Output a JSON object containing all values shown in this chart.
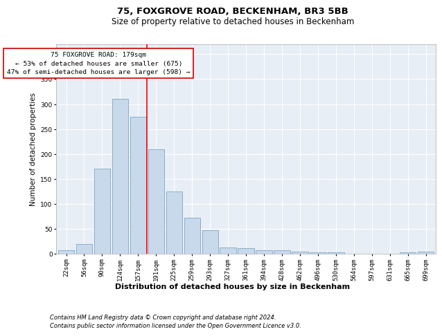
{
  "title": "75, FOXGROVE ROAD, BECKENHAM, BR3 5BB",
  "subtitle": "Size of property relative to detached houses in Beckenham",
  "xlabel": "Distribution of detached houses by size in Beckenham",
  "ylabel": "Number of detached properties",
  "footer1": "Contains HM Land Registry data © Crown copyright and database right 2024.",
  "footer2": "Contains public sector information licensed under the Open Government Licence v3.0.",
  "annotation_title": "75 FOXGROVE ROAD: 179sqm",
  "annotation_line2": "← 53% of detached houses are smaller (675)",
  "annotation_line3": "47% of semi-detached houses are larger (598) →",
  "bar_categories": [
    "22sqm",
    "56sqm",
    "90sqm",
    "124sqm",
    "157sqm",
    "191sqm",
    "225sqm",
    "259sqm",
    "293sqm",
    "327sqm",
    "361sqm",
    "394sqm",
    "428sqm",
    "462sqm",
    "496sqm",
    "530sqm",
    "564sqm",
    "597sqm",
    "631sqm",
    "665sqm",
    "699sqm"
  ],
  "bar_values": [
    7,
    20,
    170,
    310,
    275,
    210,
    125,
    73,
    48,
    13,
    12,
    7,
    7,
    5,
    3,
    3,
    1,
    0,
    0,
    3,
    4
  ],
  "bar_color": "#c9d9ec",
  "bar_edge_color": "#6699bb",
  "red_line_bin_index": 4,
  "ylim": [
    0,
    420
  ],
  "yticks": [
    0,
    50,
    100,
    150,
    200,
    250,
    300,
    350,
    400
  ],
  "axes_bg": "#e8eef5",
  "grid_color": "#ffffff",
  "annotation_box_edge": "#cc0000",
  "title_fontsize": 9.5,
  "subtitle_fontsize": 8.5,
  "ylabel_fontsize": 7.5,
  "xlabel_fontsize": 8,
  "tick_fontsize": 6.5,
  "annotation_fontsize": 6.8,
  "footer_fontsize": 6
}
